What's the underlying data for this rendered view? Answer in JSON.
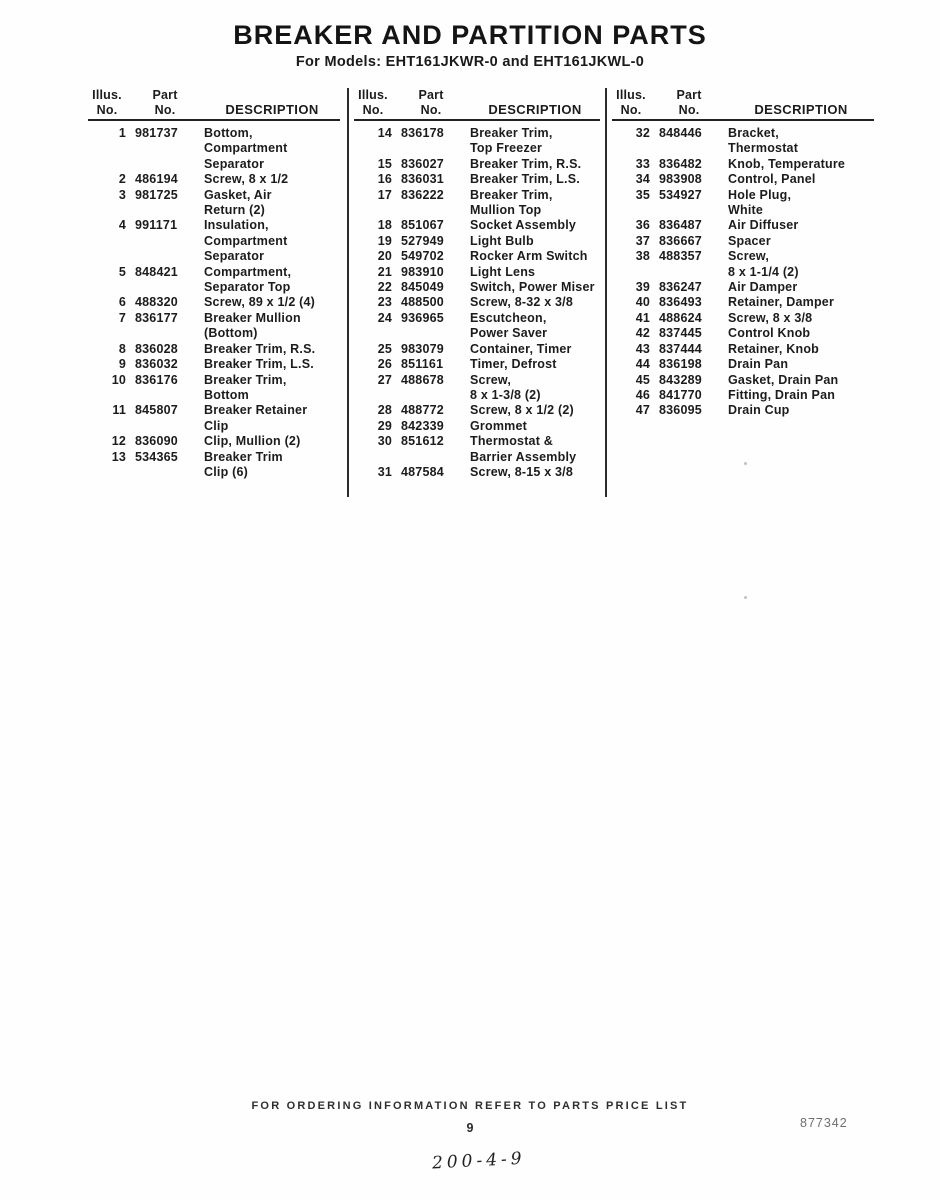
{
  "title": "BREAKER AND PARTITION PARTS",
  "subtitle": "For Models: EHT161JKWR-0 and EHT161JKWL-0",
  "header_labels": {
    "illus": "Illus.",
    "no": "No.",
    "part": "Part",
    "description": "DESCRIPTION"
  },
  "columns": [
    {
      "rows": [
        {
          "illus": "1",
          "part": "981737",
          "desc": [
            "Bottom,",
            "Compartment",
            "Separator"
          ]
        },
        {
          "illus": "2",
          "part": "486194",
          "desc": [
            "Screw, 8 x 1/2"
          ]
        },
        {
          "illus": "3",
          "part": "981725",
          "desc": [
            "Gasket, Air",
            "Return (2)"
          ]
        },
        {
          "illus": "4",
          "part": "991171",
          "desc": [
            "Insulation,",
            "Compartment",
            "Separator"
          ]
        },
        {
          "illus": "5",
          "part": "848421",
          "desc": [
            "Compartment,",
            "Separator Top"
          ]
        },
        {
          "illus": "6",
          "part": "488320",
          "desc": [
            "Screw, 89 x 1/2 (4)"
          ]
        },
        {
          "illus": "7",
          "part": "836177",
          "desc": [
            "Breaker Mullion",
            "(Bottom)"
          ]
        },
        {
          "illus": "8",
          "part": "836028",
          "desc": [
            "Breaker Trim, R.S."
          ]
        },
        {
          "illus": "9",
          "part": "836032",
          "desc": [
            "Breaker Trim, L.S."
          ]
        },
        {
          "illus": "10",
          "part": "836176",
          "desc": [
            "Breaker Trim,",
            "Bottom"
          ]
        },
        {
          "illus": "11",
          "part": "845807",
          "desc": [
            "Breaker Retainer",
            "Clip"
          ]
        },
        {
          "illus": "12",
          "part": "836090",
          "desc": [
            "Clip, Mullion (2)"
          ]
        },
        {
          "illus": "13",
          "part": "534365",
          "desc": [
            "Breaker Trim",
            "Clip (6)"
          ]
        }
      ]
    },
    {
      "rows": [
        {
          "illus": "14",
          "part": "836178",
          "desc": [
            "Breaker Trim,",
            "Top Freezer"
          ]
        },
        {
          "illus": "15",
          "part": "836027",
          "desc": [
            "Breaker Trim, R.S."
          ]
        },
        {
          "illus": "16",
          "part": "836031",
          "desc": [
            "Breaker Trim, L.S."
          ]
        },
        {
          "illus": "17",
          "part": "836222",
          "desc": [
            "Breaker Trim,",
            "Mullion Top"
          ]
        },
        {
          "illus": "18",
          "part": "851067",
          "desc": [
            "Socket Assembly"
          ]
        },
        {
          "illus": "19",
          "part": "527949",
          "desc": [
            "Light Bulb"
          ]
        },
        {
          "illus": "20",
          "part": "549702",
          "desc": [
            "Rocker Arm Switch"
          ]
        },
        {
          "illus": "21",
          "part": "983910",
          "desc": [
            "Light Lens"
          ]
        },
        {
          "illus": "22",
          "part": "845049",
          "desc": [
            "Switch, Power Miser"
          ]
        },
        {
          "illus": "23",
          "part": "488500",
          "desc": [
            "Screw, 8-32 x 3/8"
          ]
        },
        {
          "illus": "24",
          "part": "936965",
          "desc": [
            "Escutcheon,",
            "Power Saver"
          ]
        },
        {
          "illus": "25",
          "part": "983079",
          "desc": [
            "Container, Timer"
          ]
        },
        {
          "illus": "26",
          "part": "851161",
          "desc": [
            "Timer, Defrost"
          ]
        },
        {
          "illus": "27",
          "part": "488678",
          "desc": [
            "Screw,",
            "8 x 1-3/8 (2)"
          ]
        },
        {
          "illus": "28",
          "part": "488772",
          "desc": [
            "Screw, 8 x 1/2 (2)"
          ]
        },
        {
          "illus": "29",
          "part": "842339",
          "desc": [
            "Grommet"
          ]
        },
        {
          "illus": "30",
          "part": "851612",
          "desc": [
            "Thermostat &",
            "Barrier Assembly"
          ]
        },
        {
          "illus": "31",
          "part": "487584",
          "desc": [
            "Screw, 8-15 x 3/8"
          ]
        }
      ]
    },
    {
      "rows": [
        {
          "illus": "32",
          "part": "848446",
          "desc": [
            "Bracket,",
            "Thermostat"
          ]
        },
        {
          "illus": "33",
          "part": "836482",
          "desc": [
            "Knob, Temperature"
          ]
        },
        {
          "illus": "34",
          "part": "983908",
          "desc": [
            "Control, Panel"
          ]
        },
        {
          "illus": "35",
          "part": "534927",
          "desc": [
            "Hole Plug,",
            "White"
          ]
        },
        {
          "illus": "36",
          "part": "836487",
          "desc": [
            "Air Diffuser"
          ]
        },
        {
          "illus": "37",
          "part": "836667",
          "desc": [
            "Spacer"
          ]
        },
        {
          "illus": "38",
          "part": "488357",
          "desc": [
            "Screw,",
            "8 x 1-1/4 (2)"
          ]
        },
        {
          "illus": "39",
          "part": "836247",
          "desc": [
            "Air Damper"
          ]
        },
        {
          "illus": "40",
          "part": "836493",
          "desc": [
            "Retainer, Damper"
          ]
        },
        {
          "illus": "41",
          "part": "488624",
          "desc": [
            "Screw, 8 x 3/8"
          ]
        },
        {
          "illus": "42",
          "part": "837445",
          "desc": [
            "Control Knob"
          ]
        },
        {
          "illus": "43",
          "part": "837444",
          "desc": [
            "Retainer, Knob"
          ]
        },
        {
          "illus": "44",
          "part": "836198",
          "desc": [
            "Drain Pan"
          ]
        },
        {
          "illus": "45",
          "part": "843289",
          "desc": [
            "Gasket, Drain Pan"
          ]
        },
        {
          "illus": "46",
          "part": "841770",
          "desc": [
            "Fitting, Drain Pan"
          ]
        },
        {
          "illus": "47",
          "part": "836095",
          "desc": [
            "Drain Cup"
          ]
        }
      ]
    }
  ],
  "footer": {
    "ordering_note": "FOR ORDERING INFORMATION REFER TO PARTS PRICE LIST",
    "page_number": "9",
    "doc_number": "877342",
    "handwritten_note": "200-4-9"
  }
}
